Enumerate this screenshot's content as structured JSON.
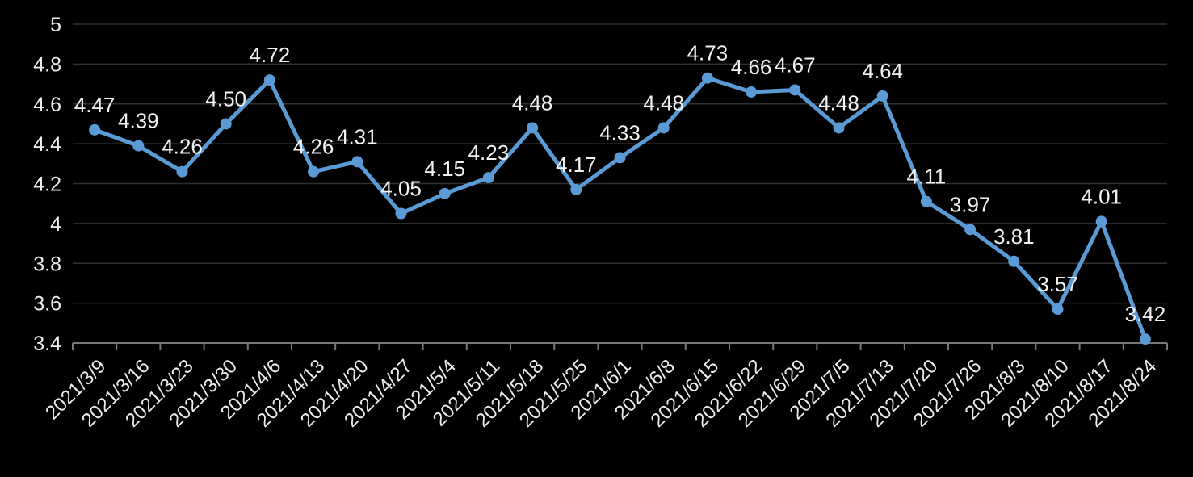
{
  "chart_data": {
    "type": "line",
    "x": [
      "2021/3/9",
      "2021/3/16",
      "2021/3/23",
      "2021/3/30",
      "2021/4/6",
      "2021/4/13",
      "2021/4/20",
      "2021/4/27",
      "2021/5/4",
      "2021/5/11",
      "2021/5/18",
      "2021/5/25",
      "2021/6/1",
      "2021/6/8",
      "2021/6/15",
      "2021/6/22",
      "2021/6/29",
      "2021/7/5",
      "2021/7/13",
      "2021/7/20",
      "2021/7/26",
      "2021/8/3",
      "2021/8/10",
      "2021/8/17",
      "2021/8/24"
    ],
    "values": [
      4.47,
      4.39,
      4.26,
      4.5,
      4.72,
      4.26,
      4.31,
      4.05,
      4.15,
      4.23,
      4.48,
      4.17,
      4.33,
      4.48,
      4.73,
      4.66,
      4.67,
      4.48,
      4.64,
      4.11,
      3.97,
      3.81,
      3.57,
      4.01,
      3.42
    ],
    "data_labels": [
      "4.47",
      "4.39",
      "4.26",
      "4.50",
      "4.72",
      "4.26",
      "4.31",
      "4.05",
      "4.15",
      "4.23",
      "4.48",
      "4.17",
      "4.33",
      "4.48",
      "4.73",
      "4.66",
      "4.67",
      "4.48",
      "4.64",
      "4.11",
      "3.97",
      "3.81",
      "3.57",
      "4.01",
      "3.42"
    ],
    "title": "",
    "xlabel": "",
    "ylabel": "",
    "ylim": [
      3.4,
      5
    ],
    "ytick_step": 0.2,
    "yticks": [
      "5",
      "4.8",
      "4.6",
      "4.4",
      "4.2",
      "4",
      "3.8",
      "3.6",
      "3.4"
    ],
    "ytick_values": [
      5,
      4.8,
      4.6,
      4.4,
      4.2,
      4,
      3.8,
      3.6,
      3.4
    ],
    "grid": true,
    "legend": false,
    "marker": "circle",
    "colors": {
      "background": "#000000",
      "line": "#5B9BD5",
      "marker_fill": "#5B9BD5",
      "gridline": "#303030",
      "axis_line": "#777777",
      "data_label_text": "#F2F2F2",
      "axis_tick_text": "#EDEDED"
    }
  }
}
